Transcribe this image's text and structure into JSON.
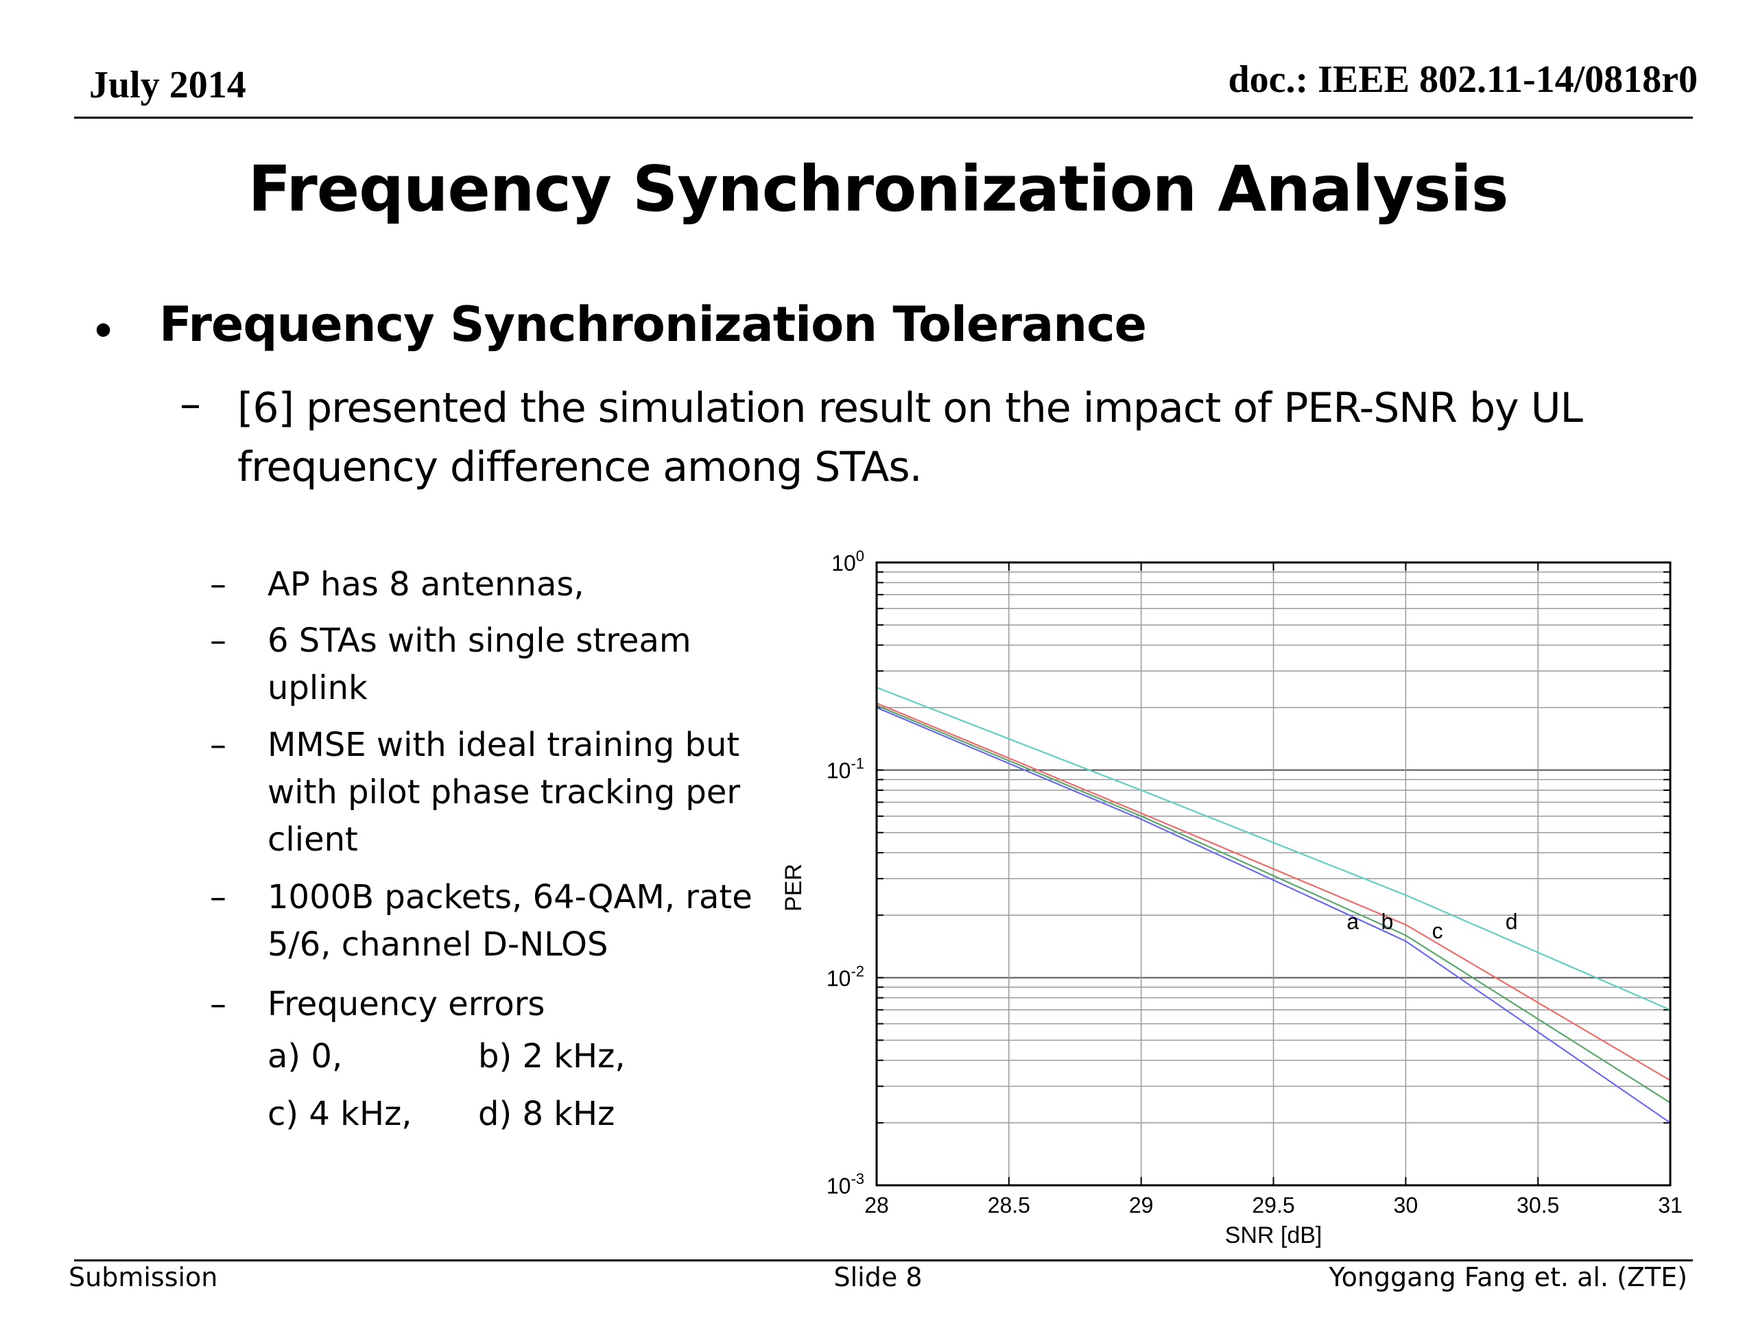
{
  "header": {
    "date": "July 2014",
    "doc": "doc.: IEEE 802.11-14/0818r0"
  },
  "title": "Frequency Synchronization Analysis",
  "bullet": "Frequency Synchronization  Tolerance",
  "sub_bullet": "[6] presented the simulation result on the impact of PER-SNR by UL frequency difference among STAs.",
  "list": [
    "AP has 8 antennas,",
    "6 STAs with single stream uplink",
    "MMSE with ideal training but with pilot phase tracking per client",
    "1000B packets, 64-QAM, rate 5/6, channel D-NLOS",
    "Frequency errors"
  ],
  "freq_errors": [
    "a) 0,",
    "b) 2 kHz,",
    "c) 4 kHz,",
    "d) 8 kHz"
  ],
  "chart_data": {
    "type": "line",
    "xlabel": "SNR [dB]",
    "ylabel": "PER",
    "xlim": [
      28,
      31
    ],
    "ylim": [
      0.001,
      1
    ],
    "yscale": "log",
    "grid": true,
    "x_ticks": [
      "28",
      "28.5",
      "29",
      "29.5",
      "30",
      "30.5",
      "31"
    ],
    "y_ticks": [
      {
        "base": "10",
        "exp": "0"
      },
      {
        "base": "10",
        "exp": "-1"
      },
      {
        "base": "10",
        "exp": "-2"
      },
      {
        "base": "10",
        "exp": "-3"
      }
    ],
    "series": [
      {
        "name": "a",
        "color": "#6a6af0",
        "x": [
          28,
          29,
          30,
          31
        ],
        "values": [
          0.2,
          0.058,
          0.015,
          0.002
        ]
      },
      {
        "name": "b",
        "color": "#5aa86a",
        "x": [
          28,
          29,
          30,
          31
        ],
        "values": [
          0.205,
          0.06,
          0.016,
          0.0025
        ]
      },
      {
        "name": "c",
        "color": "#f06a6a",
        "x": [
          28,
          29,
          30,
          31
        ],
        "values": [
          0.21,
          0.062,
          0.018,
          0.0032
        ]
      },
      {
        "name": "d",
        "color": "#5fd0c0",
        "x": [
          28,
          29,
          30,
          31
        ],
        "values": [
          0.25,
          0.08,
          0.025,
          0.007
        ]
      }
    ],
    "annotations": [
      {
        "text": "a",
        "x": 29.8,
        "y": 0.0185
      },
      {
        "text": "b",
        "x": 29.93,
        "y": 0.0185
      },
      {
        "text": "c",
        "x": 30.12,
        "y": 0.0167
      },
      {
        "text": "d",
        "x": 30.4,
        "y": 0.0185
      }
    ]
  },
  "footer": {
    "left": "Submission",
    "center": "Slide 8",
    "right": "Yonggang Fang et. al. (ZTE)"
  }
}
